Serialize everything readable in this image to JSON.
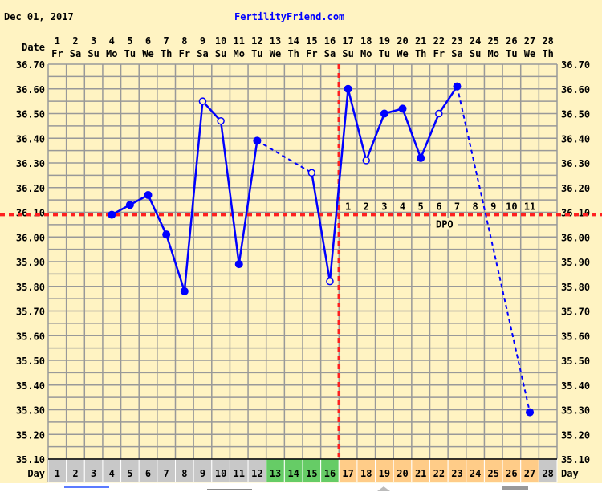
{
  "header": {
    "date": "Dec 01, 2017",
    "site": "FertilityFriend.com"
  },
  "colors": {
    "background": "#FFF3C2",
    "grid": "#999999",
    "line": "#0000FF",
    "coverline": "#FF2020",
    "day_gray": "#C8C8C8",
    "day_green": "#66CC66",
    "day_orange": "#FFCC88"
  },
  "chart_data": {
    "type": "line",
    "row_labels": {
      "date": "Date",
      "day": "Day",
      "dpo": "DPO"
    },
    "ylim": [
      35.1,
      36.7
    ],
    "yticks": [
      "36.70",
      "36.60",
      "36.50",
      "36.40",
      "36.30",
      "36.20",
      "36.10",
      "36.00",
      "35.90",
      "35.80",
      "35.70",
      "35.60",
      "35.50",
      "35.40",
      "35.30",
      "35.20",
      "35.10"
    ],
    "grid": true,
    "days": [
      1,
      2,
      3,
      4,
      5,
      6,
      7,
      8,
      9,
      10,
      11,
      12,
      13,
      14,
      15,
      16,
      17,
      18,
      19,
      20,
      21,
      22,
      23,
      24,
      25,
      26,
      27,
      28
    ],
    "weekdays": [
      "Fr",
      "Sa",
      "Su",
      "Mo",
      "Tu",
      "We",
      "Th",
      "Fr",
      "Sa",
      "Su",
      "Mo",
      "Tu",
      "We",
      "Th",
      "Fr",
      "Sa",
      "Su",
      "Mo",
      "Tu",
      "We",
      "Th",
      "Fr",
      "Sa",
      "Su",
      "Mo",
      "Tu",
      "We",
      "Th"
    ],
    "day_colors": [
      "gray",
      "gray",
      "gray",
      "gray",
      "gray",
      "gray",
      "gray",
      "gray",
      "gray",
      "gray",
      "gray",
      "gray",
      "green",
      "green",
      "green",
      "green",
      "orange",
      "orange",
      "orange",
      "orange",
      "orange",
      "orange",
      "orange",
      "orange",
      "orange",
      "orange",
      "orange",
      "gray"
    ],
    "temperatures": [
      {
        "day": 4,
        "value": 36.09,
        "marker": "filled"
      },
      {
        "day": 5,
        "value": 36.13,
        "marker": "filled"
      },
      {
        "day": 6,
        "value": 36.17,
        "marker": "filled"
      },
      {
        "day": 7,
        "value": 36.01,
        "marker": "filled"
      },
      {
        "day": 8,
        "value": 35.78,
        "marker": "filled"
      },
      {
        "day": 9,
        "value": 36.55,
        "marker": "open"
      },
      {
        "day": 10,
        "value": 36.47,
        "marker": "open"
      },
      {
        "day": 11,
        "value": 35.89,
        "marker": "filled"
      },
      {
        "day": 12,
        "value": 36.39,
        "marker": "filled"
      },
      {
        "day": 15,
        "value": 36.26,
        "marker": "open"
      },
      {
        "day": 16,
        "value": 35.82,
        "marker": "open"
      },
      {
        "day": 17,
        "value": 36.6,
        "marker": "filled"
      },
      {
        "day": 18,
        "value": 36.31,
        "marker": "open"
      },
      {
        "day": 19,
        "value": 36.5,
        "marker": "filled"
      },
      {
        "day": 20,
        "value": 36.52,
        "marker": "filled"
      },
      {
        "day": 21,
        "value": 36.32,
        "marker": "filled"
      },
      {
        "day": 22,
        "value": 36.5,
        "marker": "open"
      },
      {
        "day": 23,
        "value": 36.61,
        "marker": "filled"
      },
      {
        "day": 27,
        "value": 35.29,
        "marker": "filled"
      }
    ],
    "coverline": 36.09,
    "ovulation_day": 16,
    "dpo": [
      {
        "day": 17,
        "label": "1"
      },
      {
        "day": 18,
        "label": "2"
      },
      {
        "day": 19,
        "label": "3"
      },
      {
        "day": 20,
        "label": "4"
      },
      {
        "day": 21,
        "label": "5"
      },
      {
        "day": 22,
        "label": "6"
      },
      {
        "day": 23,
        "label": "7"
      },
      {
        "day": 24,
        "label": "8"
      },
      {
        "day": 25,
        "label": "9"
      },
      {
        "day": 26,
        "label": "10"
      },
      {
        "day": 27,
        "label": "11"
      }
    ]
  }
}
